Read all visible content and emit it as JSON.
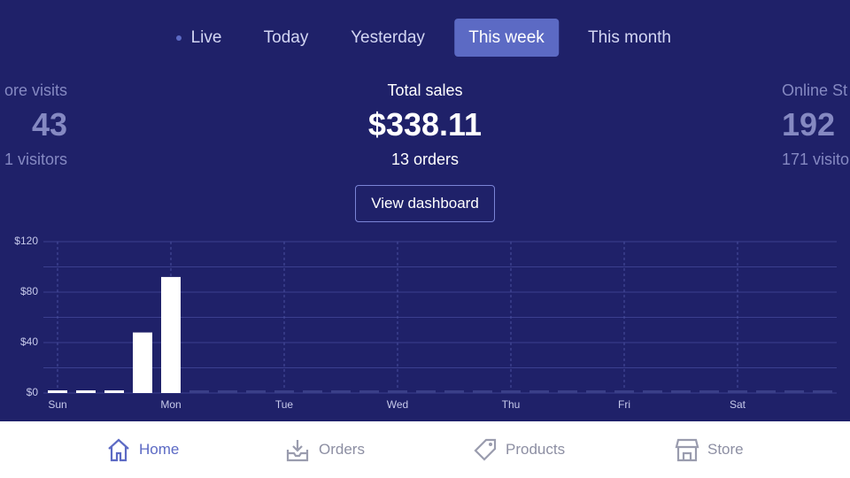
{
  "tabs": [
    "Live",
    "Today",
    "Yesterday",
    "This week",
    "This month"
  ],
  "active_tab": 3,
  "stats": [
    {
      "title": "ore visits",
      "value": "43",
      "sub": "1 visitors"
    },
    {
      "title": "Total sales",
      "value": "$338.11",
      "sub": "13 orders"
    },
    {
      "title": "Online St",
      "value": "192",
      "sub": "171 visito"
    }
  ],
  "button": "View dashboard",
  "chart_data": {
    "type": "bar",
    "categories": [
      "Sun",
      null,
      null,
      null,
      "Mon",
      null,
      null,
      null,
      "Tue",
      null,
      null,
      null,
      "Wed",
      null,
      null,
      null,
      "Thu",
      null,
      null,
      null,
      "Fri",
      null,
      null,
      null,
      "Sat",
      null,
      null,
      null
    ],
    "values": [
      0,
      0,
      0,
      48,
      92,
      null,
      null,
      null,
      null,
      null,
      null,
      null,
      null,
      null,
      null,
      null,
      null,
      null,
      null,
      null,
      null,
      null,
      null,
      null,
      null,
      null,
      null,
      null
    ],
    "color": "#ffffff",
    "ylim": [
      0,
      120
    ],
    "yticks": [
      {
        "value": 0,
        "label": "$0"
      },
      {
        "value": 40,
        "label": "$40"
      },
      {
        "value": 80,
        "label": "$80"
      },
      {
        "value": 120,
        "label": "$120"
      }
    ],
    "minor_grid": [
      20,
      60,
      100
    ],
    "grid": true
  },
  "nav": [
    "Home",
    "Orders",
    "Products",
    "Store"
  ],
  "active_nav": 0
}
